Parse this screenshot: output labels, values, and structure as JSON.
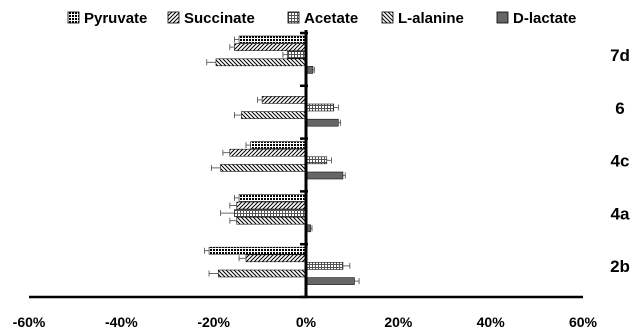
{
  "chart_data": {
    "type": "bar",
    "orientation": "horizontal",
    "title": "",
    "xlabel": "",
    "ylabel": "",
    "categories": [
      "7d",
      "6",
      "4c",
      "4a",
      "2b"
    ],
    "xlim": [
      -60,
      60
    ],
    "x_ticks": [
      -60,
      -40,
      -20,
      0,
      20,
      40,
      60
    ],
    "tick_suffix": "%",
    "grid": false,
    "legend_position": "top",
    "series": [
      {
        "name": "Pyruvate",
        "pattern": "dots-dense",
        "values": [
          -14.5,
          null,
          -12,
          -14.5,
          -21
        ],
        "errors": [
          1,
          null,
          1,
          1,
          1
        ]
      },
      {
        "name": "Succinate",
        "pattern": "diagonal-forward",
        "values": [
          -15.5,
          -9.5,
          -16.5,
          -15,
          -13
        ],
        "errors": [
          1,
          1,
          1.5,
          1.5,
          1.5
        ]
      },
      {
        "name": "Acetate",
        "pattern": "grid",
        "values": [
          -4,
          6,
          4.5,
          -15.5,
          8
        ],
        "errors": [
          1,
          1,
          1,
          3,
          1.5
        ]
      },
      {
        "name": "L-alanine",
        "pattern": "diagonal-back",
        "values": [
          -19.5,
          -14,
          -18.5,
          -15,
          -19
        ],
        "errors": [
          2,
          1.5,
          2,
          1.5,
          2
        ]
      },
      {
        "name": "D-lactate",
        "pattern": "solid-gray",
        "values": [
          1.5,
          7,
          8,
          1,
          10.5
        ],
        "errors": [
          0.3,
          0.5,
          0.5,
          0.3,
          1
        ]
      }
    ]
  }
}
